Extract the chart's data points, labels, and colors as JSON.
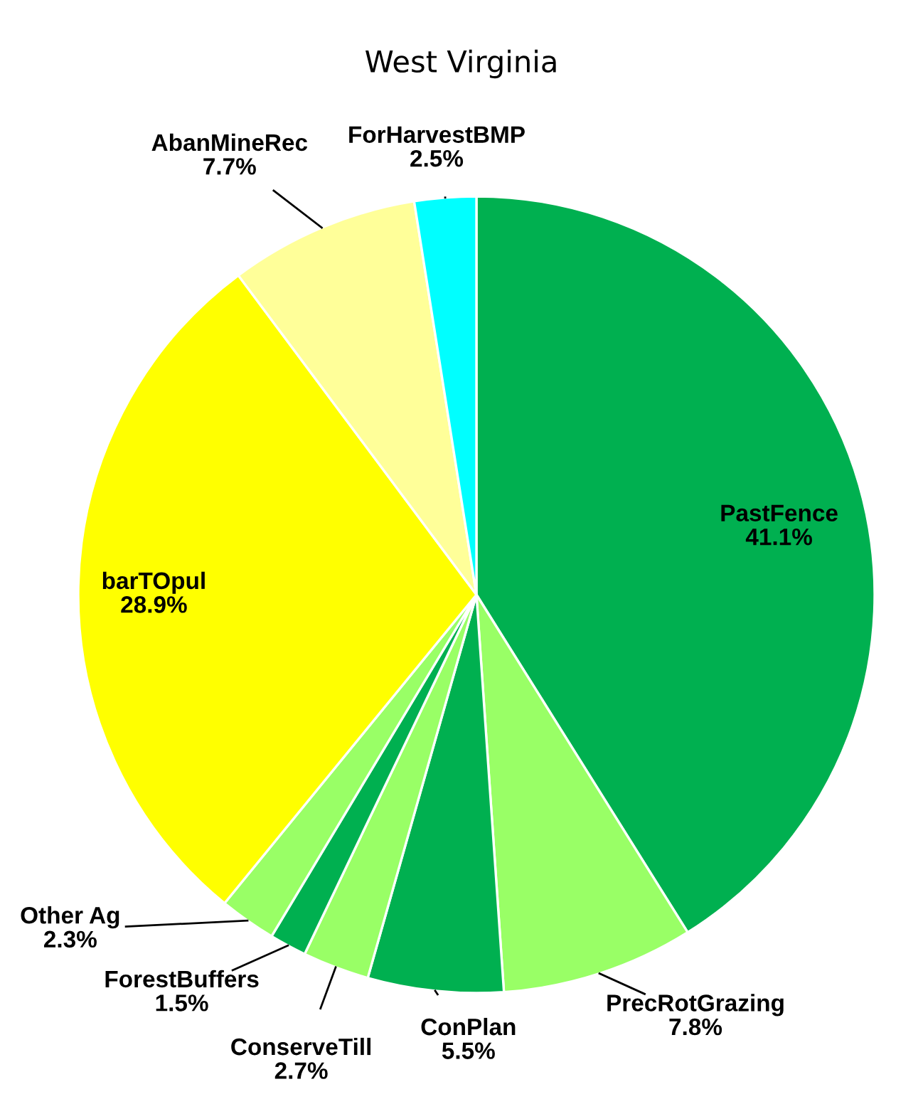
{
  "chart_data": {
    "type": "pie",
    "title": "West Virginia",
    "categories": [
      "PastFence",
      "PrecRotGrazing",
      "ConPlan",
      "ConserveTill",
      "ForestBuffers",
      "Other Ag",
      "barTOpul",
      "AbanMineRec",
      "ForHarvestBMP"
    ],
    "values": [
      41.1,
      7.8,
      5.5,
      2.7,
      1.5,
      2.3,
      28.9,
      7.7,
      2.5
    ],
    "colors": [
      "#00b050",
      "#99ff66",
      "#00b050",
      "#99ff66",
      "#00b050",
      "#99ff66",
      "#ffff00",
      "#ffff99",
      "#00ffff"
    ],
    "value_labels": [
      "41.1%",
      "7.8%",
      "5.5%",
      "2.7%",
      "1.5%",
      "2.3%",
      "28.9%",
      "7.7%",
      "2.5%"
    ]
  }
}
